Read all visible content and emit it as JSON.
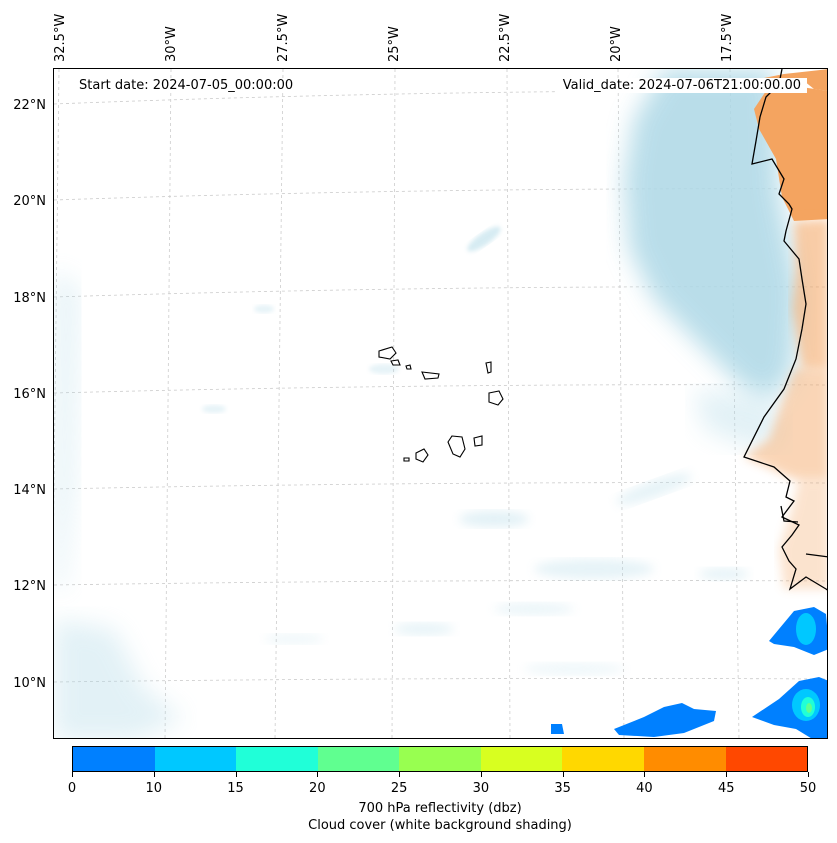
{
  "annotations": {
    "start_date": "Start date: 2024-07-05_00:00:00",
    "valid_date": "Valid_date: 2024-07-06T21:00:00.00"
  },
  "lat_labels": [
    "22°N",
    "20°N",
    "18°N",
    "16°N",
    "14°N",
    "12°N",
    "10°N"
  ],
  "lon_labels": [
    "32.5°W",
    "30°W",
    "27.5°W",
    "25°W",
    "22.5°W",
    "20°W",
    "17.5°W"
  ],
  "colorbar": {
    "ticks": [
      "0",
      "10",
      "15",
      "20",
      "25",
      "30",
      "35",
      "40",
      "45",
      "50"
    ],
    "colors": [
      "#0080ff",
      "#00c8ff",
      "#20ffd8",
      "#60ff90",
      "#98ff50",
      "#d8ff20",
      "#ffd800",
      "#ff8c00",
      "#ff4800"
    ],
    "title_line1": "700 hPa reflectivity (dbz)",
    "title_line2": "Cloud cover (white background shading)"
  },
  "colors": {
    "cloud": "#add8e6",
    "land": "#f4a460",
    "coast": "#000000"
  }
}
